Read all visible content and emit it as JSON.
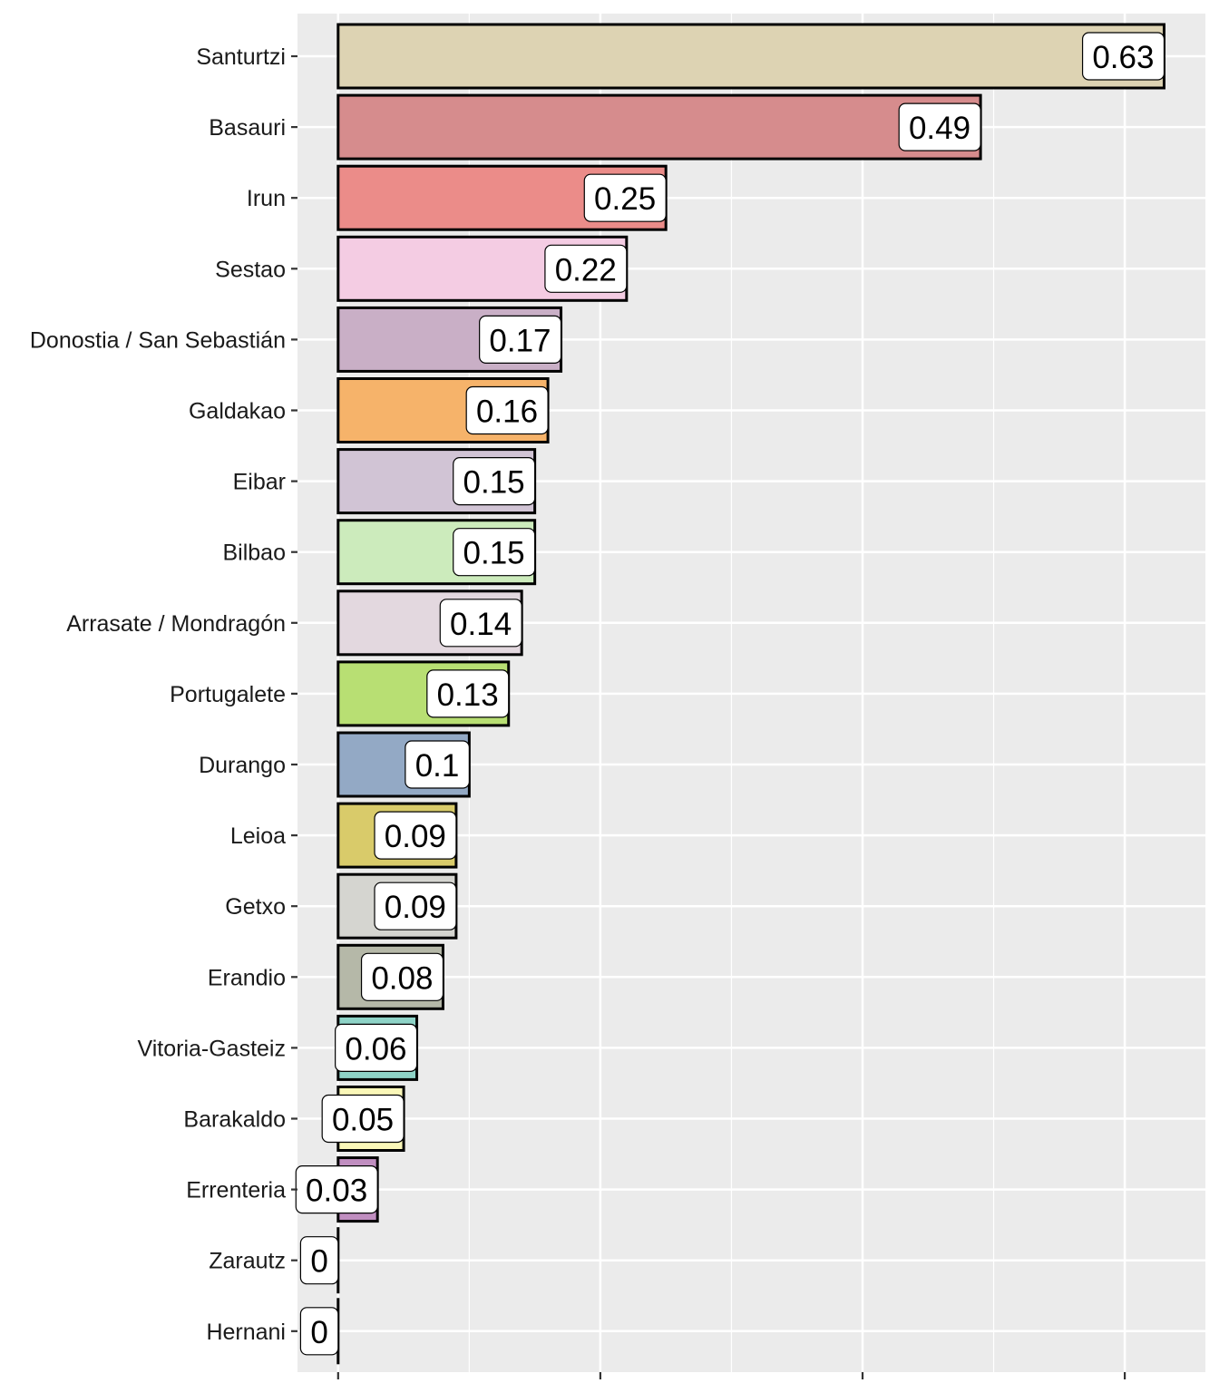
{
  "chart_data": {
    "type": "bar",
    "orientation": "horizontal",
    "title": "",
    "xlabel": "",
    "ylabel": "",
    "xlim": [
      -0.031,
      0.6615
    ],
    "x_major_ticks": [
      0,
      0.2,
      0.4,
      0.6
    ],
    "x_minor_gridlines": [
      0.1,
      0.3,
      0.5
    ],
    "x_tick_labels_shown": false,
    "grid": true,
    "legend": "none",
    "panel_background": "#EBEBEB",
    "categories": [
      "Santurtzi",
      "Basauri",
      "Irun",
      "Sestao",
      "Donostia / San Sebastián",
      "Galdakao",
      "Eibar",
      "Bilbao",
      "Arrasate / Mondragón",
      "Portugalete",
      "Durango",
      "Leioa",
      "Getxo",
      "Erandio",
      "Vitoria-Gasteiz",
      "Barakaldo",
      "Errenteria",
      "Zarautz",
      "Hernani"
    ],
    "values": [
      0.63,
      0.49,
      0.25,
      0.22,
      0.17,
      0.16,
      0.15,
      0.15,
      0.14,
      0.13,
      0.1,
      0.09,
      0.09,
      0.08,
      0.06,
      0.05,
      0.03,
      0,
      0
    ],
    "data_labels": [
      "0.63",
      "0.49",
      "0.25",
      "0.22",
      "0.17",
      "0.16",
      "0.15",
      "0.15",
      "0.14",
      "0.13",
      "0.1",
      "0.09",
      "0.09",
      "0.08",
      "0.06",
      "0.05",
      "0.03",
      "0",
      "0"
    ],
    "colors": [
      "#DDD3B3",
      "#D68C8D",
      "#EB8C89",
      "#F4CCE3",
      "#C9AFC6",
      "#F6B36A",
      "#D1C4D5",
      "#CCEBBC",
      "#E3D8DF",
      "#B8DF73",
      "#93A9C5",
      "#D9CB6A",
      "#D5D5D0",
      "#B5B8A8",
      "#8ED3C7",
      "#FAF7B8",
      "#C08EC0",
      "#F0F0F0",
      "#F0F0F0"
    ]
  }
}
